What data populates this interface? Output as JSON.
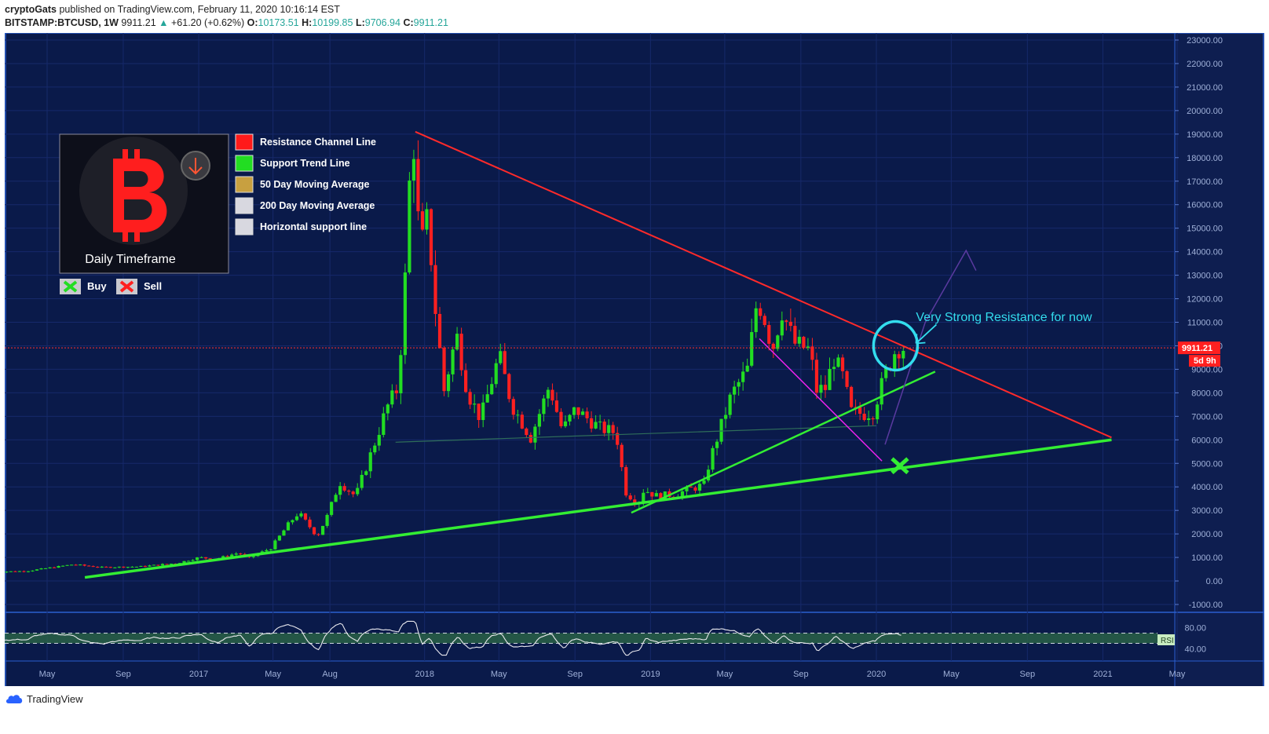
{
  "header": {
    "author": "cryptoGats",
    "published": "published on TradingView.com, February 11, 2020 10:16:14 EST",
    "symbol": "BITSTAMP:BTCUSD, 1W",
    "price": "9911.21",
    "change": "+61.20 (+0.62%)",
    "open_label": "O:",
    "open": "10173.51",
    "high_label": "H:",
    "high": "10199.85",
    "low_label": "L:",
    "low": "9706.94",
    "close_label": "C:",
    "close": "9911.21"
  },
  "legend": {
    "box_caption": "Daily Timeframe",
    "items": [
      {
        "label": "Resistance Channel Line",
        "color": "#ff1a1a"
      },
      {
        "label": "Support Trend Line",
        "color": "#22dd22"
      },
      {
        "label": "50 Day Moving Average",
        "color": "#c8a040"
      },
      {
        "label": "200 Day Moving Average",
        "color": "#d8d8e0"
      },
      {
        "label": "Horizontal support line",
        "color": "#d8d8e0"
      }
    ],
    "buy_label": "Buy",
    "sell_label": "Sell"
  },
  "annotation": "Very Strong Resistance for now",
  "price_tag": "9911.21",
  "countdown_tag": "5d 9h",
  "rsi_label": "RSI",
  "footer": {
    "brand": "TradingView"
  },
  "colors": {
    "background": "#0a1a4a",
    "bull": "#22dd22",
    "bear": "#ff2020",
    "resistance": "#ff2a2a",
    "support": "#33ee33",
    "highlight": "#33ddee",
    "projection": "#5a3aa0",
    "wedge": "#ee22ee"
  },
  "chart_data": {
    "type": "candlestick",
    "interval": "1W",
    "ylim": [
      -1000,
      23000
    ],
    "y_ticks": [
      "23000.00",
      "22000.00",
      "21000.00",
      "20000.00",
      "19000.00",
      "18000.00",
      "17000.00",
      "16000.00",
      "15000.00",
      "14000.00",
      "13000.00",
      "12000.00",
      "11000.00",
      "10000.00",
      "9000.00",
      "8000.00",
      "7000.00",
      "6000.00",
      "5000.00",
      "4000.00",
      "3000.00",
      "2000.00",
      "1000.00",
      "0.00",
      "-1000.00"
    ],
    "x_ticks": [
      {
        "label": "May",
        "date": "2016-05-01"
      },
      {
        "label": "Sep",
        "date": "2016-09-01"
      },
      {
        "label": "2017",
        "date": "2017-01-01"
      },
      {
        "label": "May",
        "date": "2017-05-01"
      },
      {
        "label": "Aug",
        "date": "2017-08-01"
      },
      {
        "label": "2018",
        "date": "2018-01-01"
      },
      {
        "label": "May",
        "date": "2018-05-01"
      },
      {
        "label": "Sep",
        "date": "2018-09-01"
      },
      {
        "label": "2019",
        "date": "2019-01-01"
      },
      {
        "label": "May",
        "date": "2019-05-01"
      },
      {
        "label": "Sep",
        "date": "2019-09-01"
      },
      {
        "label": "2020",
        "date": "2020-01-01"
      },
      {
        "label": "May",
        "date": "2020-05-01"
      },
      {
        "label": "Sep",
        "date": "2020-09-01"
      },
      {
        "label": "2021",
        "date": "2021-01-01"
      },
      {
        "label": "May",
        "date": "2021-05-01"
      }
    ],
    "price_path": [
      [
        "2016-02-01",
        380
      ],
      [
        "2016-04-01",
        420
      ],
      [
        "2016-06-15",
        700
      ],
      [
        "2016-08-01",
        580
      ],
      [
        "2016-10-01",
        610
      ],
      [
        "2016-12-01",
        760
      ],
      [
        "2017-01-05",
        1000
      ],
      [
        "2017-02-01",
        930
      ],
      [
        "2017-03-10",
        1200
      ],
      [
        "2017-03-25",
        950
      ],
      [
        "2017-05-01",
        1400
      ],
      [
        "2017-06-01",
        2500
      ],
      [
        "2017-06-15",
        2900
      ],
      [
        "2017-07-15",
        1900
      ],
      [
        "2017-08-01",
        2800
      ],
      [
        "2017-08-20",
        4200
      ],
      [
        "2017-09-15",
        3600
      ],
      [
        "2017-10-15",
        5800
      ],
      [
        "2017-11-05",
        7400
      ],
      [
        "2017-11-20",
        8100
      ],
      [
        "2017-12-01",
        11000
      ],
      [
        "2017-12-10",
        16500
      ],
      [
        "2017-12-17",
        19000
      ],
      [
        "2017-12-28",
        14000
      ],
      [
        "2018-01-10",
        15500
      ],
      [
        "2018-01-20",
        12000
      ],
      [
        "2018-02-05",
        8100
      ],
      [
        "2018-02-25",
        10500
      ],
      [
        "2018-03-15",
        8000
      ],
      [
        "2018-04-05",
        6900
      ],
      [
        "2018-05-05",
        9600
      ],
      [
        "2018-05-25",
        7500
      ],
      [
        "2018-06-25",
        6100
      ],
      [
        "2018-07-25",
        8300
      ],
      [
        "2018-08-15",
        6400
      ],
      [
        "2018-09-05",
        7300
      ],
      [
        "2018-10-15",
        6500
      ],
      [
        "2018-11-10",
        6300
      ],
      [
        "2018-11-25",
        3800
      ],
      [
        "2018-12-15",
        3300
      ],
      [
        "2018-12-25",
        3900
      ],
      [
        "2019-01-15",
        3600
      ],
      [
        "2019-02-15",
        3700
      ],
      [
        "2019-04-01",
        4100
      ],
      [
        "2019-04-10",
        5100
      ],
      [
        "2019-05-15",
        7900
      ],
      [
        "2019-06-10",
        9000
      ],
      [
        "2019-06-26",
        12000
      ],
      [
        "2019-07-10",
        11000
      ],
      [
        "2019-07-20",
        9800
      ],
      [
        "2019-08-05",
        11500
      ],
      [
        "2019-08-25",
        10100
      ],
      [
        "2019-09-20",
        9800
      ],
      [
        "2019-09-28",
        8100
      ],
      [
        "2019-10-15",
        8200
      ],
      [
        "2019-10-27",
        9500
      ],
      [
        "2019-11-10",
        8800
      ],
      [
        "2019-11-25",
        7200
      ],
      [
        "2019-12-15",
        7100
      ],
      [
        "2019-12-30",
        7200
      ],
      [
        "2020-01-10",
        8100
      ],
      [
        "2020-01-25",
        9200
      ],
      [
        "2020-02-05",
        9850
      ],
      [
        "2020-02-10",
        9911.21
      ]
    ],
    "rsi": {
      "ylim": [
        20,
        100
      ],
      "ticks": [
        "80.00",
        "40.00"
      ],
      "band": [
        40,
        80
      ]
    }
  }
}
